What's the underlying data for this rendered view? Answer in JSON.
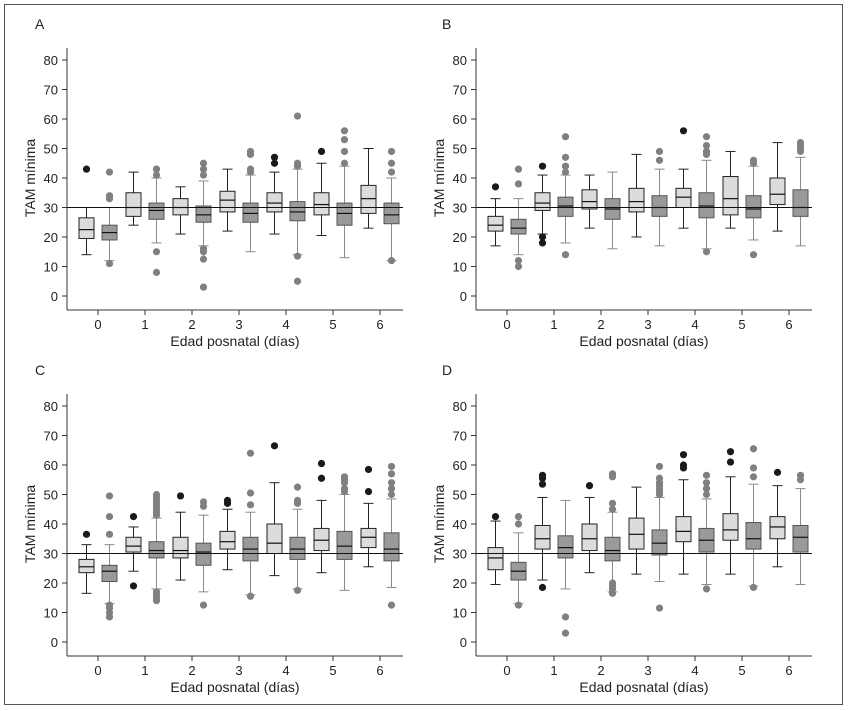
{
  "chart_data": [
    {
      "panel": "A",
      "type": "box",
      "ylabel": "TAM mínima",
      "xlabel": "Edad posnatal (días)",
      "categories": [
        "0",
        "1",
        "2",
        "3",
        "4",
        "5",
        "6"
      ],
      "ylim": [
        0,
        80
      ],
      "yticks": [
        0,
        10,
        20,
        30,
        40,
        50,
        60,
        70,
        80
      ],
      "reference_line": 30,
      "series": [
        {
          "boxes": [
            {
              "min": 14,
              "q1": 19.5,
              "median": 22.5,
              "q3": 26.5,
              "max": 30,
              "outliers": [
                43
              ]
            },
            {
              "min": 24,
              "q1": 27,
              "median": 30,
              "q3": 35,
              "max": 42,
              "outliers": []
            },
            {
              "min": 21,
              "q1": 27.5,
              "median": 30,
              "q3": 33,
              "max": 37,
              "outliers": []
            },
            {
              "min": 22,
              "q1": 28.5,
              "median": 32.5,
              "q3": 35.5,
              "max": 43,
              "outliers": []
            },
            {
              "min": 21,
              "q1": 28.5,
              "median": 31.5,
              "q3": 35,
              "max": 42,
              "outliers": [
                45,
                47
              ]
            },
            {
              "min": 20.5,
              "q1": 27.5,
              "median": 31,
              "q3": 35,
              "max": 45,
              "outliers": [
                49
              ]
            },
            {
              "min": 23,
              "q1": 28,
              "median": 33,
              "q3": 37.5,
              "max": 50,
              "outliers": []
            }
          ]
        },
        {
          "boxes": [
            {
              "min": 12,
              "q1": 19,
              "median": 21.5,
              "q3": 24,
              "max": 30,
              "outliers": [
                11,
                33,
                34,
                42
              ]
            },
            {
              "min": 18,
              "q1": 26,
              "median": 29,
              "q3": 31.5,
              "max": 40,
              "outliers": [
                8,
                15,
                41,
                43
              ]
            },
            {
              "min": 17,
              "q1": 25,
              "median": 27.5,
              "q3": 30.5,
              "max": 39,
              "outliers": [
                3,
                12.5,
                15,
                16,
                41,
                43,
                45
              ]
            },
            {
              "min": 15,
              "q1": 25,
              "median": 28,
              "q3": 31.5,
              "max": 41,
              "outliers": [
                42,
                43,
                48,
                49
              ]
            },
            {
              "min": 14,
              "q1": 25.5,
              "median": 28.5,
              "q3": 32,
              "max": 43,
              "outliers": [
                5,
                13.5,
                44,
                45,
                61
              ]
            },
            {
              "min": 13,
              "q1": 24,
              "median": 28,
              "q3": 31.5,
              "max": 44,
              "outliers": [
                45,
                49,
                53,
                56
              ]
            },
            {
              "min": 12,
              "q1": 24.5,
              "median": 27.5,
              "q3": 31.5,
              "max": 40,
              "outliers": [
                12,
                42,
                45,
                49
              ]
            }
          ]
        }
      ]
    },
    {
      "panel": "B",
      "type": "box",
      "ylabel": "TAM mínima",
      "xlabel": "Edad posnatal (días)",
      "categories": [
        "0",
        "1",
        "2",
        "3",
        "4",
        "5",
        "6"
      ],
      "ylim": [
        0,
        80
      ],
      "yticks": [
        0,
        10,
        20,
        30,
        40,
        50,
        60,
        70,
        80
      ],
      "reference_line": 30,
      "series": [
        {
          "boxes": [
            {
              "min": 17,
              "q1": 22,
              "median": 24,
              "q3": 27,
              "max": 33,
              "outliers": [
                37
              ]
            },
            {
              "min": 21,
              "q1": 29,
              "median": 31.5,
              "q3": 35,
              "max": 41,
              "outliers": [
                18,
                20,
                44
              ]
            },
            {
              "min": 23,
              "q1": 29.5,
              "median": 32,
              "q3": 36,
              "max": 41,
              "outliers": []
            },
            {
              "min": 20,
              "q1": 28.5,
              "median": 32,
              "q3": 36.5,
              "max": 48,
              "outliers": []
            },
            {
              "min": 23,
              "q1": 30,
              "median": 33.5,
              "q3": 36.5,
              "max": 43,
              "outliers": [
                56
              ]
            },
            {
              "min": 23,
              "q1": 27.5,
              "median": 33,
              "q3": 40.5,
              "max": 49,
              "outliers": []
            },
            {
              "min": 22,
              "q1": 31,
              "median": 34.5,
              "q3": 40,
              "max": 52,
              "outliers": []
            }
          ]
        },
        {
          "boxes": [
            {
              "min": 14,
              "q1": 21,
              "median": 23,
              "q3": 26,
              "max": 33,
              "outliers": [
                10,
                12,
                38,
                43
              ]
            },
            {
              "min": 18,
              "q1": 27,
              "median": 30.5,
              "q3": 33.5,
              "max": 41,
              "outliers": [
                14,
                42,
                44,
                47,
                54
              ]
            },
            {
              "min": 16,
              "q1": 26,
              "median": 29.5,
              "q3": 33,
              "max": 42,
              "outliers": []
            },
            {
              "min": 17,
              "q1": 27,
              "median": 30,
              "q3": 34,
              "max": 43,
              "outliers": [
                46,
                49
              ]
            },
            {
              "min": 16,
              "q1": 26.5,
              "median": 30.5,
              "q3": 35,
              "max": 46,
              "outliers": [
                15,
                48,
                49,
                51,
                54
              ]
            },
            {
              "min": 19,
              "q1": 26.5,
              "median": 29.5,
              "q3": 34,
              "max": 44,
              "outliers": [
                14,
                45,
                46
              ]
            },
            {
              "min": 17,
              "q1": 27,
              "median": 30,
              "q3": 36,
              "max": 47,
              "outliers": [
                49,
                50,
                51,
                52
              ]
            }
          ]
        }
      ]
    },
    {
      "panel": "C",
      "type": "box",
      "ylabel": "TAM mínima",
      "xlabel": "Edad posnatal (días)",
      "categories": [
        "0",
        "1",
        "2",
        "3",
        "4",
        "5",
        "6"
      ],
      "ylim": [
        0,
        80
      ],
      "yticks": [
        0,
        10,
        20,
        30,
        40,
        50,
        60,
        70,
        80
      ],
      "reference_line": 30,
      "series": [
        {
          "boxes": [
            {
              "min": 16.5,
              "q1": 23.5,
              "median": 25.5,
              "q3": 28,
              "max": 33,
              "outliers": [
                36.5
              ]
            },
            {
              "min": 24,
              "q1": 30.5,
              "median": 32.5,
              "q3": 35.5,
              "max": 39,
              "outliers": [
                19,
                42.5
              ]
            },
            {
              "min": 21,
              "q1": 28.5,
              "median": 31,
              "q3": 35.5,
              "max": 44,
              "outliers": [
                49.5
              ]
            },
            {
              "min": 24.5,
              "q1": 31.5,
              "median": 34,
              "q3": 37.5,
              "max": 45,
              "outliers": [
                47,
                48
              ]
            },
            {
              "min": 22.5,
              "q1": 30,
              "median": 33.5,
              "q3": 40,
              "max": 54,
              "outliers": [
                66.5
              ]
            },
            {
              "min": 23.5,
              "q1": 31,
              "median": 34.5,
              "q3": 38.5,
              "max": 48,
              "outliers": [
                55.5,
                60.5
              ]
            },
            {
              "min": 25.5,
              "q1": 32,
              "median": 35.5,
              "q3": 38.5,
              "max": 47,
              "outliers": [
                51,
                58.5
              ]
            }
          ]
        },
        {
          "boxes": [
            {
              "min": 13,
              "q1": 20.5,
              "median": 24,
              "q3": 26,
              "max": 33,
              "outliers": [
                8.5,
                10,
                11.5,
                12.5,
                36.5,
                42.5,
                49.5
              ]
            },
            {
              "min": 18,
              "q1": 28.5,
              "median": 31,
              "q3": 34,
              "max": 42,
              "outliers": [
                14,
                15,
                16,
                17,
                43,
                44,
                45,
                46,
                47,
                48,
                49,
                50
              ]
            },
            {
              "min": 17,
              "q1": 26,
              "median": 30.5,
              "q3": 33.5,
              "max": 43,
              "outliers": [
                12.5,
                46,
                47.5
              ]
            },
            {
              "min": 16,
              "q1": 27.5,
              "median": 31.5,
              "q3": 35.5,
              "max": 44,
              "outliers": [
                15.5,
                46.5,
                50.5,
                64
              ]
            },
            {
              "min": 18,
              "q1": 28,
              "median": 31.5,
              "q3": 35.5,
              "max": 45,
              "outliers": [
                17.5,
                47,
                48,
                52.5
              ]
            },
            {
              "min": 17.5,
              "q1": 28,
              "median": 32.5,
              "q3": 37.5,
              "max": 50,
              "outliers": [
                51,
                52,
                54,
                55,
                56
              ]
            },
            {
              "min": 18.5,
              "q1": 27.5,
              "median": 31.5,
              "q3": 37,
              "max": 48.5,
              "outliers": [
                12.5,
                50,
                52,
                54,
                57,
                59.5
              ]
            }
          ]
        }
      ]
    },
    {
      "panel": "D",
      "type": "box",
      "ylabel": "TAM mínima",
      "xlabel": "Edad posnatal (días)",
      "categories": [
        "0",
        "1",
        "2",
        "3",
        "4",
        "5",
        "6"
      ],
      "ylim": [
        0,
        80
      ],
      "yticks": [
        0,
        10,
        20,
        30,
        40,
        50,
        60,
        70,
        80
      ],
      "reference_line": 30,
      "series": [
        {
          "boxes": [
            {
              "min": 19.5,
              "q1": 24.5,
              "median": 28.5,
              "q3": 32,
              "max": 41,
              "outliers": [
                42.5
              ]
            },
            {
              "min": 21,
              "q1": 31.5,
              "median": 35,
              "q3": 39.5,
              "max": 49,
              "outliers": [
                18.5,
                53.5,
                55.5,
                56.5
              ]
            },
            {
              "min": 23.5,
              "q1": 31,
              "median": 35,
              "q3": 40,
              "max": 49,
              "outliers": [
                53
              ]
            },
            {
              "min": 23,
              "q1": 31.5,
              "median": 36.5,
              "q3": 42,
              "max": 52.5,
              "outliers": []
            },
            {
              "min": 23,
              "q1": 34,
              "median": 37.5,
              "q3": 42.5,
              "max": 55,
              "outliers": [
                59,
                60,
                63.5
              ]
            },
            {
              "min": 23,
              "q1": 34.5,
              "median": 38,
              "q3": 43.5,
              "max": 56,
              "outliers": [
                61,
                64.5
              ]
            },
            {
              "min": 25.5,
              "q1": 35,
              "median": 39,
              "q3": 42.5,
              "max": 53,
              "outliers": [
                57.5
              ]
            }
          ]
        },
        {
          "boxes": [
            {
              "min": 13,
              "q1": 21,
              "median": 24,
              "q3": 27,
              "max": 37,
              "outliers": [
                12.5,
                40,
                42.5
              ]
            },
            {
              "min": 18,
              "q1": 28.5,
              "median": 32,
              "q3": 36,
              "max": 48,
              "outliers": [
                3,
                8.5
              ]
            },
            {
              "min": 17,
              "q1": 27.5,
              "median": 31,
              "q3": 35.5,
              "max": 44,
              "outliers": [
                16.5,
                18,
                19,
                20,
                45,
                47,
                56,
                57
              ]
            },
            {
              "min": 20.5,
              "q1": 29.5,
              "median": 33.5,
              "q3": 38,
              "max": 49,
              "outliers": [
                11.5,
                50,
                51,
                52,
                53,
                54,
                55.5,
                59.5
              ]
            },
            {
              "min": 19.5,
              "q1": 30.5,
              "median": 34.5,
              "q3": 38.5,
              "max": 48.5,
              "outliers": [
                18,
                50,
                52,
                54,
                56.5
              ]
            },
            {
              "min": 19,
              "q1": 31.5,
              "median": 35,
              "q3": 40.5,
              "max": 53.5,
              "outliers": [
                18.5,
                56,
                59,
                65.5
              ]
            },
            {
              "min": 19.5,
              "q1": 30.5,
              "median": 35.5,
              "q3": 39.5,
              "max": 52,
              "outliers": [
                55,
                56.5
              ]
            }
          ]
        }
      ]
    }
  ],
  "colors": {
    "series_1_fill": "#dcdcdc",
    "series_2_fill": "#9a9a9a",
    "series_1_outlier": "#1a1a1a",
    "series_2_outlier": "#808080",
    "series_2_whisker": "#8a8a8a",
    "axis": "#333333",
    "reference_line": "#111111"
  }
}
